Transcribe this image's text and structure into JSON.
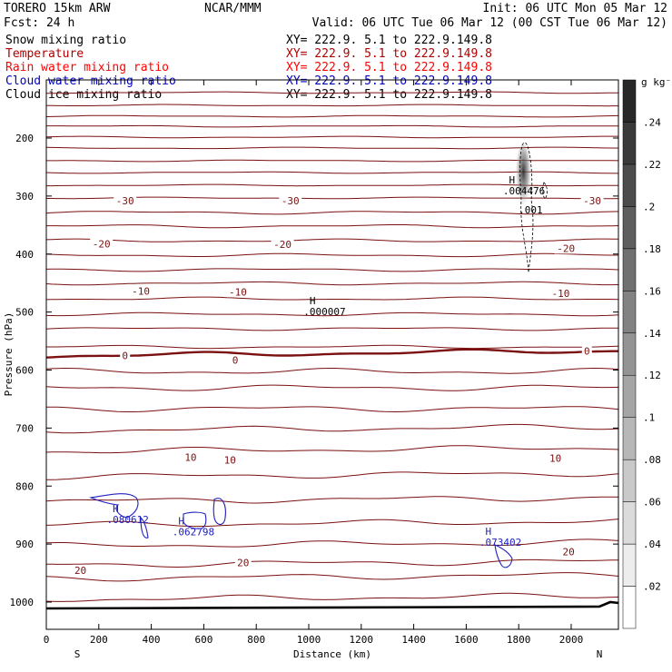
{
  "header": {
    "model": "TORERO  15km ARW",
    "org": "NCAR/MMM",
    "init": "Init: 06 UTC Mon 05 Mar 12",
    "fcst": "Fcst:   24 h",
    "valid": "Valid: 06 UTC Tue 06 Mar 12 (00 CST Tue 06 Mar 12)"
  },
  "fields": [
    {
      "name": "Snow mixing ratio",
      "xy": "XY= 222.9.  5.1 to 222.9.149.8",
      "color": "#000000"
    },
    {
      "name": "Temperature",
      "xy": "XY= 222.9.  5.1 to 222.9.149.8",
      "color": "#b00000"
    },
    {
      "name": "Rain water mixing ratio",
      "xy": "XY= 222.9.  5.1 to 222.9.149.8",
      "color": "#ff0000"
    },
    {
      "name": "Cloud water mixing ratio",
      "xy": "XY= 222.9.  5.1 to 222.9.149.8",
      "color": "#0000c0"
    },
    {
      "name": "Cloud ice mixing ratio",
      "xy": "XY= 222.9.  5.1 to 222.9.149.8",
      "color": "#000000"
    }
  ],
  "chart_data": {
    "type": "cross-section",
    "xlabel": "Distance (km)",
    "ylabel": "Pressure (hPa)",
    "xlim": [
      0,
      2180
    ],
    "ylim": [
      1050,
      130
    ],
    "x_ticks": [
      0,
      200,
      400,
      600,
      800,
      1000,
      1200,
      1400,
      1600,
      1800,
      2000
    ],
    "y_ticks": [
      200,
      300,
      400,
      500,
      600,
      700,
      800,
      900,
      1000
    ],
    "left_end": "S",
    "right_end": "N",
    "colorbar": {
      "unit": "g kg⁻¹",
      "levels": [
        0.02,
        0.04,
        0.06,
        0.08,
        0.1,
        0.12,
        0.14,
        0.16,
        0.18,
        0.2,
        0.22,
        0.24
      ],
      "tick_labels": [
        ".02",
        ".04",
        ".06",
        ".08",
        ".1",
        ".12",
        ".14",
        ".16",
        ".18",
        ".2",
        ".22",
        ".24"
      ]
    },
    "temperature_isotherm_labels": [
      {
        "value": "-30",
        "x": 300,
        "p": 308
      },
      {
        "value": "-30",
        "x": 930,
        "p": 308
      },
      {
        "value": "-30",
        "x": 2080,
        "p": 308
      },
      {
        "value": "-20",
        "x": 210,
        "p": 382
      },
      {
        "value": "-20",
        "x": 900,
        "p": 383
      },
      {
        "value": "-20",
        "x": 1980,
        "p": 390
      },
      {
        "value": "-10",
        "x": 360,
        "p": 464
      },
      {
        "value": "-10",
        "x": 730,
        "p": 465
      },
      {
        "value": "-10",
        "x": 1960,
        "p": 468
      },
      {
        "value": "0",
        "x": 300,
        "p": 575
      },
      {
        "value": "0",
        "x": 720,
        "p": 583
      },
      {
        "value": "0",
        "x": 2060,
        "p": 567
      },
      {
        "value": "10",
        "x": 550,
        "p": 750
      },
      {
        "value": "10",
        "x": 700,
        "p": 755
      },
      {
        "value": "10",
        "x": 1940,
        "p": 752
      },
      {
        "value": "20",
        "x": 130,
        "p": 945
      },
      {
        "value": "20",
        "x": 750,
        "p": 932
      },
      {
        "value": "20",
        "x": 1990,
        "p": 913
      }
    ],
    "extrema_labels": [
      {
        "mark": "H",
        "value": ".004476",
        "x": 1740,
        "p": 297,
        "field": "Snow mixing ratio"
      },
      {
        "mark": "",
        "value": ".001",
        "x": 1800,
        "p": 330,
        "field": "Snow mixing ratio"
      },
      {
        "mark": "H",
        "value": ".000007",
        "x": 980,
        "p": 505,
        "field": "Cloud ice mixing ratio"
      },
      {
        "mark": "H",
        "value": ".080612",
        "x": 230,
        "p": 864,
        "field": "Cloud water mixing ratio"
      },
      {
        "mark": "H",
        "value": ".062798",
        "x": 480,
        "p": 885,
        "field": "Cloud water mixing ratio"
      },
      {
        "mark": "H",
        "value": ".073402",
        "x": 1650,
        "p": 903,
        "field": "Cloud water mixing ratio"
      }
    ]
  }
}
